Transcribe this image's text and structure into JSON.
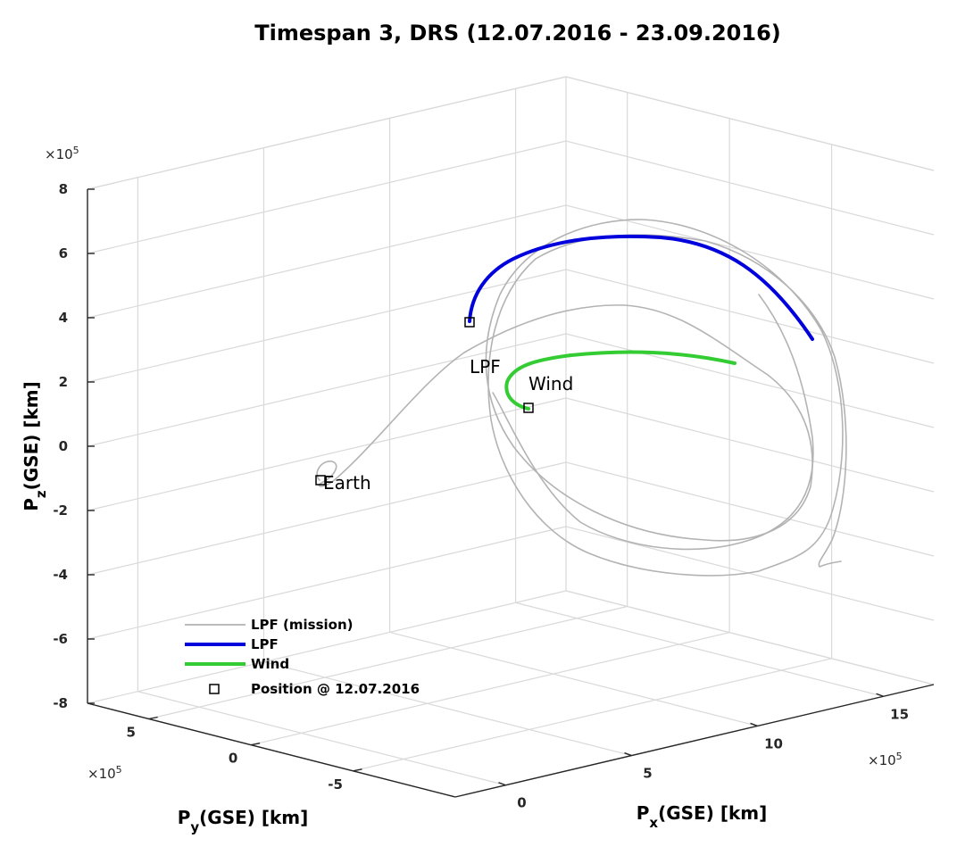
{
  "title": "Timespan 3, DRS (12.07.2016 - 23.09.2016)",
  "chart_data": {
    "type": "line3d",
    "title": "Timespan 3, DRS (12.07.2016 - 23.09.2016)",
    "xlabel": {
      "main": "P",
      "sub": "x",
      "rest": "(GSE) [km]"
    },
    "ylabel": {
      "main": "P",
      "sub": "y",
      "rest": "(GSE) [km]"
    },
    "zlabel": {
      "main": "P",
      "sub": "z",
      "rest": "(GSE) [km]"
    },
    "x_ticks": [
      "0",
      "5",
      "10",
      "15"
    ],
    "y_ticks": [
      "5",
      "0",
      "-5"
    ],
    "z_ticks": [
      "8",
      "6",
      "4",
      "2",
      "0",
      "-2",
      "-4",
      "-6",
      "-8"
    ],
    "x_multiplier": {
      "base": "×10",
      "exp": "5"
    },
    "y_multiplier": {
      "base": "×10",
      "exp": "5"
    },
    "z_multiplier": {
      "base": "×10",
      "exp": "5"
    },
    "xlim": [
      -2,
      17
    ],
    "ylim": [
      -10,
      8
    ],
    "zlim": [
      -8,
      8
    ],
    "grid": true,
    "legend_position": "bottom-left",
    "colors": {
      "mission": "#b3b3b3",
      "lpf": "#0000dd",
      "wind": "#33cc33",
      "marker": "#000000"
    },
    "series": [
      {
        "name": "LPF (mission)",
        "style": "thin-gray-line"
      },
      {
        "name": "LPF",
        "style": "thick-blue-line"
      },
      {
        "name": "Wind",
        "style": "thick-green-line"
      },
      {
        "name": "Position @ 12.07.2016",
        "style": "square-marker"
      }
    ],
    "annotations": [
      {
        "text": "Earth",
        "target": "earth"
      },
      {
        "text": "LPF",
        "target": "lpf-start"
      },
      {
        "text": "Wind",
        "target": "wind-start"
      }
    ]
  }
}
